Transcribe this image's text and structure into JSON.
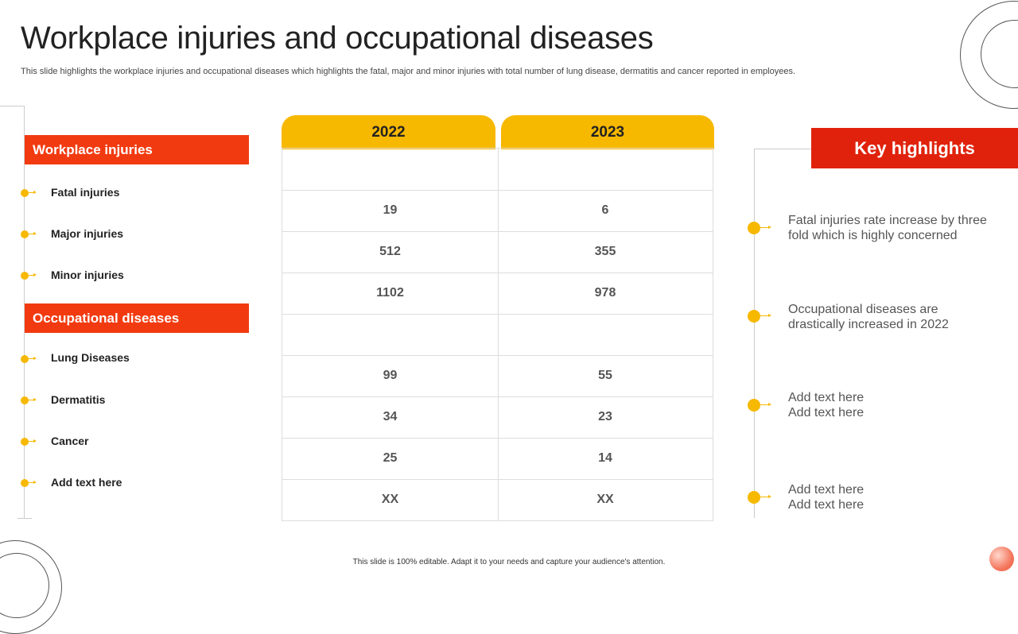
{
  "slide": {
    "title": "Workplace injuries and occupational diseases",
    "subtitle": "This slide highlights the workplace injuries and occupational diseases which highlights the fatal, major and minor injuries with total number of lung disease, dermatitis and cancer reported in employees.",
    "footer": "This slide is 100% editable. Adapt it to your needs and capture your audience's attention."
  },
  "categories": {
    "workplace": {
      "label": "Workplace injuries",
      "items": [
        "Fatal injuries",
        "Major injuries",
        "Minor injuries"
      ]
    },
    "occupational": {
      "label": "Occupational diseases",
      "items": [
        "Lung Diseases",
        "Dermatitis",
        "Cancer",
        "Add text here"
      ]
    }
  },
  "table": {
    "headers": [
      "2022",
      "2023"
    ],
    "rows": [
      [
        "",
        ""
      ],
      [
        "19",
        "6"
      ],
      [
        "512",
        "355"
      ],
      [
        "1102",
        "978"
      ],
      [
        "",
        ""
      ],
      [
        "99",
        "55"
      ],
      [
        "34",
        "23"
      ],
      [
        "25",
        "14"
      ],
      [
        "XX",
        "XX"
      ]
    ]
  },
  "key_highlights": {
    "title": "Key highlights",
    "items": [
      [
        "Fatal injuries rate increase by three",
        "fold which is highly concerned"
      ],
      [
        "Occupational diseases are",
        "drastically increased in 2022"
      ],
      [
        "Add text here",
        "Add text here"
      ],
      [
        "Add text here",
        "Add text here"
      ]
    ]
  },
  "colors": {
    "accent_red": "#f23a10",
    "highlight_red": "#e0220c",
    "accent_yellow": "#f7b800"
  }
}
